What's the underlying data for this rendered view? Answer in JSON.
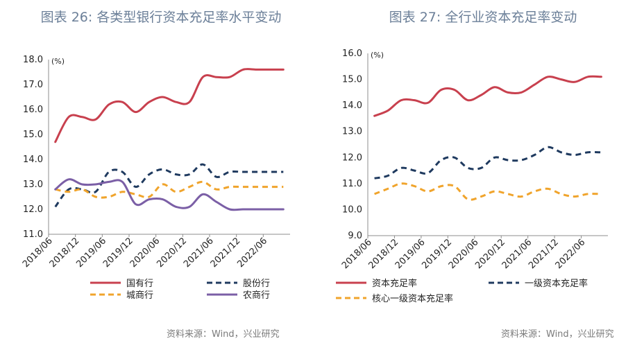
{
  "charts": [
    {
      "title": "图表 26: 各类型银行资本充足率水平变动",
      "source": "资料来源：Wind，兴业研究",
      "chart_data": {
        "type": "line",
        "unit": "(%)",
        "ylim": [
          11.0,
          18.0
        ],
        "yticks": [
          "18.0",
          "17.0",
          "16.0",
          "15.0",
          "14.0",
          "13.0",
          "12.0",
          "11.0"
        ],
        "categories": [
          "2018/06",
          "2018/09",
          "2018/12",
          "2019/03",
          "2019/06",
          "2019/09",
          "2019/12",
          "2020/03",
          "2020/06",
          "2020/09",
          "2020/12",
          "2021/03",
          "2021/06",
          "2021/09",
          "2021/12",
          "2022/03",
          "2022/06",
          "2022/09"
        ],
        "xticks": [
          "2018/06",
          "2018/12",
          "2019/06",
          "2019/12",
          "2020/06",
          "2020/12",
          "2021/06",
          "2021/12",
          "2022/06"
        ],
        "legend_placement": "bottom",
        "grid": false,
        "series": [
          {
            "name": "国有行",
            "color": "#c8404e",
            "style": "solid",
            "values": [
              14.7,
              15.7,
              15.7,
              15.6,
              16.2,
              16.3,
              15.9,
              16.3,
              16.5,
              16.3,
              16.3,
              17.3,
              17.3,
              17.3,
              17.6,
              17.6,
              17.6,
              17.6
            ]
          },
          {
            "name": "股份行",
            "color": "#1f3a5f",
            "style": "dash",
            "values": [
              12.1,
              12.8,
              12.8,
              12.7,
              13.5,
              13.5,
              12.9,
              13.4,
              13.6,
              13.4,
              13.4,
              13.8,
              13.3,
              13.5,
              13.5,
              13.5,
              13.5,
              13.5
            ]
          },
          {
            "name": "城商行",
            "color": "#f0a42c",
            "style": "dash",
            "values": [
              12.8,
              12.7,
              12.8,
              12.5,
              12.5,
              12.7,
              12.6,
              12.5,
              13.0,
              12.7,
              12.9,
              13.1,
              12.8,
              12.9,
              12.9,
              12.9,
              12.9,
              12.9
            ]
          },
          {
            "name": "农商行",
            "color": "#7b5fa6",
            "style": "solid",
            "values": [
              12.8,
              13.2,
              13.0,
              13.0,
              13.1,
              13.1,
              12.2,
              12.4,
              12.4,
              12.1,
              12.1,
              12.6,
              12.3,
              12.0,
              12.0,
              12.0,
              12.0,
              12.0
            ]
          }
        ]
      }
    },
    {
      "title": "图表 27: 全行业资本充足率变动",
      "source": "资料来源：Wind，兴业研究",
      "chart_data": {
        "type": "line",
        "unit": "(%)",
        "ylim": [
          9.0,
          16.0
        ],
        "yticks": [
          "16.0",
          "15.0",
          "14.0",
          "13.0",
          "12.0",
          "11.0",
          "10.0",
          "9.0"
        ],
        "categories": [
          "2018/06",
          "2018/09",
          "2018/12",
          "2019/03",
          "2019/06",
          "2019/09",
          "2019/12",
          "2020/03",
          "2020/06",
          "2020/09",
          "2020/12",
          "2021/03",
          "2021/06",
          "2021/09",
          "2021/12",
          "2022/03",
          "2022/06",
          "2022/09"
        ],
        "xticks": [
          "2018/06",
          "2018/12",
          "2019/06",
          "2019/12",
          "2020/06",
          "2020/12",
          "2021/06",
          "2021/12",
          "2022/06"
        ],
        "legend_placement": "bottom",
        "grid": false,
        "series": [
          {
            "name": "资本充足率",
            "color": "#c8404e",
            "style": "solid",
            "values": [
              13.6,
              13.8,
              14.2,
              14.2,
              14.1,
              14.6,
              14.6,
              14.2,
              14.4,
              14.7,
              14.5,
              14.5,
              14.8,
              15.1,
              15.0,
              14.9,
              15.1,
              15.1
            ]
          },
          {
            "name": "一级资本充足率",
            "color": "#1f3a5f",
            "style": "dash",
            "values": [
              11.2,
              11.3,
              11.6,
              11.5,
              11.4,
              11.9,
              12.0,
              11.6,
              11.6,
              12.0,
              11.9,
              11.9,
              12.1,
              12.4,
              12.2,
              12.1,
              12.2,
              12.2
            ]
          },
          {
            "name": "核心一级资本充足率",
            "color": "#f0a42c",
            "style": "dash",
            "values": [
              10.6,
              10.8,
              11.0,
              10.9,
              10.7,
              10.9,
              10.9,
              10.4,
              10.5,
              10.7,
              10.6,
              10.5,
              10.7,
              10.8,
              10.6,
              10.5,
              10.6,
              10.6
            ]
          }
        ]
      }
    }
  ]
}
